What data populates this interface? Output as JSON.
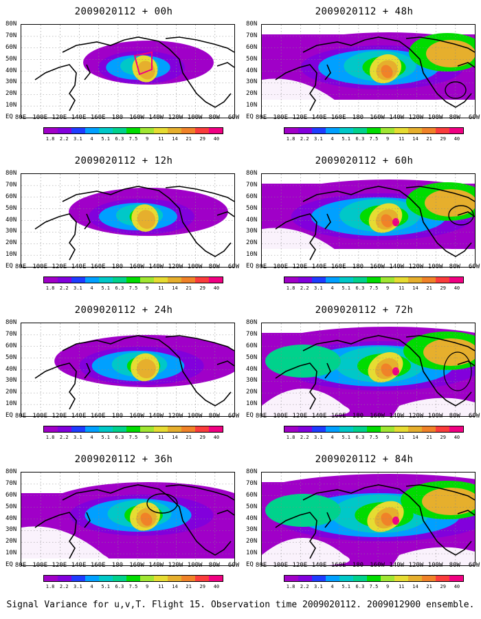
{
  "panels": [
    {
      "title": "2009020112 + 00h",
      "level": 0
    },
    {
      "title": "2009020112 + 12h",
      "level": 1
    },
    {
      "title": "2009020112 + 24h",
      "level": 2
    },
    {
      "title": "2009020112 + 36h",
      "level": 3
    },
    {
      "title": "2009020112 + 48h",
      "level": 4
    },
    {
      "title": "2009020112 + 60h",
      "level": 5
    },
    {
      "title": "2009020112 + 72h",
      "level": 6
    },
    {
      "title": "2009020112 + 84h",
      "level": 7
    }
  ],
  "lat_labels": [
    "80N",
    "70N",
    "60N",
    "50N",
    "40N",
    "30N",
    "20N",
    "10N",
    "EQ"
  ],
  "lon_labels": [
    "80E",
    "100E",
    "120E",
    "140E",
    "160E",
    "180",
    "160W",
    "140W",
    "120W",
    "100W",
    "80W",
    "60W"
  ],
  "colorbar": {
    "labels": [
      "1.8",
      "2.2",
      "3.1",
      "4",
      "5.1",
      "6.3",
      "7.5",
      "9",
      "11",
      "14",
      "21",
      "29",
      "40"
    ],
    "colors": [
      "#a000c8",
      "#8200dc",
      "#1e3cff",
      "#00a0ff",
      "#00c8c8",
      "#00d28c",
      "#00dc00",
      "#a0e632",
      "#e6dc32",
      "#e6af2d",
      "#f08228",
      "#fa3c3c",
      "#f00082"
    ]
  },
  "caption": "Signal Variance for u,v,T. Flight 15. Observation time 2009020112. 2009012900 ensemble.",
  "icons": {
    "coastline": "coastline-outline",
    "observation-track": "circle-marker"
  }
}
